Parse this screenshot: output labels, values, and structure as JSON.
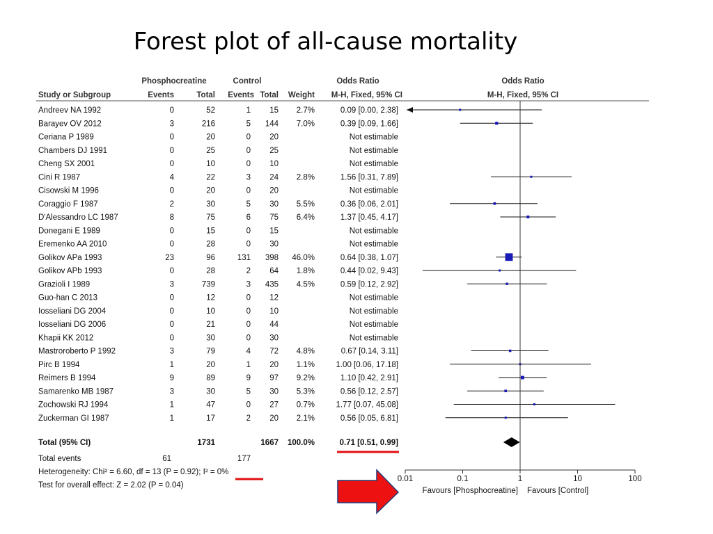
{
  "slide_title": "Forest plot of all-cause mortality",
  "colors": {
    "marker": "#1a1ab8",
    "accent_red": "#e01010",
    "arrow_red": "#ee1111",
    "arrow_outline": "#1e3a78"
  },
  "chart_data": {
    "type": "forest",
    "title": "Forest plot of all-cause mortality",
    "headers": {
      "study": "Study or Subgroup",
      "group1": "Phosphocreatine",
      "group2": "Control",
      "events": "Events",
      "total": "Total",
      "weight": "Weight",
      "or_label": "Odds Ratio",
      "or_method": "M-H, Fixed, 95% CI"
    },
    "studies": [
      {
        "name": "Andreev NA 1992",
        "e1": "0",
        "t1": "52",
        "e2": "1",
        "t2": "15",
        "weight": "2.7%",
        "ci_text": "0.09 [0.00, 2.38]",
        "or": 0.09,
        "lo": 0.004,
        "hi": 2.38,
        "w": 2.7,
        "arrow_left": true
      },
      {
        "name": "Barayev OV 2012",
        "e1": "3",
        "t1": "216",
        "e2": "5",
        "t2": "144",
        "weight": "7.0%",
        "ci_text": "0.39 [0.09, 1.66]",
        "or": 0.39,
        "lo": 0.09,
        "hi": 1.66,
        "w": 7.0
      },
      {
        "name": "Ceriana P 1989",
        "e1": "0",
        "t1": "20",
        "e2": "0",
        "t2": "20",
        "weight": "",
        "ci_text": "Not estimable"
      },
      {
        "name": "Chambers DJ 1991",
        "e1": "0",
        "t1": "25",
        "e2": "0",
        "t2": "25",
        "weight": "",
        "ci_text": "Not estimable"
      },
      {
        "name": "Cheng SX 2001",
        "e1": "0",
        "t1": "10",
        "e2": "0",
        "t2": "10",
        "weight": "",
        "ci_text": "Not estimable"
      },
      {
        "name": "Cini R 1987",
        "e1": "4",
        "t1": "22",
        "e2": "3",
        "t2": "24",
        "weight": "2.8%",
        "ci_text": "1.56 [0.31, 7.89]",
        "or": 1.56,
        "lo": 0.31,
        "hi": 7.89,
        "w": 2.8
      },
      {
        "name": "Cisowski M 1996",
        "e1": "0",
        "t1": "20",
        "e2": "0",
        "t2": "20",
        "weight": "",
        "ci_text": "Not estimable"
      },
      {
        "name": "Coraggio F 1987",
        "e1": "2",
        "t1": "30",
        "e2": "5",
        "t2": "30",
        "weight": "5.5%",
        "ci_text": "0.36 [0.06, 2.01]",
        "or": 0.36,
        "lo": 0.06,
        "hi": 2.01,
        "w": 5.5
      },
      {
        "name": "D'Alessandro LC 1987",
        "e1": "8",
        "t1": "75",
        "e2": "6",
        "t2": "75",
        "weight": "6.4%",
        "ci_text": "1.37 [0.45, 4.17]",
        "or": 1.37,
        "lo": 0.45,
        "hi": 4.17,
        "w": 6.4
      },
      {
        "name": "Donegani E 1989",
        "e1": "0",
        "t1": "15",
        "e2": "0",
        "t2": "15",
        "weight": "",
        "ci_text": "Not estimable"
      },
      {
        "name": "Eremenko AA 2010",
        "e1": "0",
        "t1": "28",
        "e2": "0",
        "t2": "30",
        "weight": "",
        "ci_text": "Not estimable"
      },
      {
        "name": "Golikov APa 1993",
        "e1": "23",
        "t1": "96",
        "e2": "131",
        "t2": "398",
        "weight": "46.0%",
        "ci_text": "0.64 [0.38, 1.07]",
        "or": 0.64,
        "lo": 0.38,
        "hi": 1.07,
        "w": 46.0
      },
      {
        "name": "Golikov APb 1993",
        "e1": "0",
        "t1": "28",
        "e2": "2",
        "t2": "64",
        "weight": "1.8%",
        "ci_text": "0.44 [0.02, 9.43]",
        "or": 0.44,
        "lo": 0.02,
        "hi": 9.43,
        "w": 1.8
      },
      {
        "name": "Grazioli I 1989",
        "e1": "3",
        "t1": "739",
        "e2": "3",
        "t2": "435",
        "weight": "4.5%",
        "ci_text": "0.59 [0.12, 2.92]",
        "or": 0.59,
        "lo": 0.12,
        "hi": 2.92,
        "w": 4.5
      },
      {
        "name": "Guo-han C 2013",
        "e1": "0",
        "t1": "12",
        "e2": "0",
        "t2": "12",
        "weight": "",
        "ci_text": "Not estimable"
      },
      {
        "name": "Iosseliani DG 2004",
        "e1": "0",
        "t1": "10",
        "e2": "0",
        "t2": "10",
        "weight": "",
        "ci_text": "Not estimable"
      },
      {
        "name": "Iosseliani DG 2006",
        "e1": "0",
        "t1": "21",
        "e2": "0",
        "t2": "44",
        "weight": "",
        "ci_text": "Not estimable"
      },
      {
        "name": "Khapii KK 2012",
        "e1": "0",
        "t1": "30",
        "e2": "0",
        "t2": "30",
        "weight": "",
        "ci_text": "Not estimable"
      },
      {
        "name": "Mastroroberto P 1992",
        "e1": "3",
        "t1": "79",
        "e2": "4",
        "t2": "72",
        "weight": "4.8%",
        "ci_text": "0.67 [0.14, 3.11]",
        "or": 0.67,
        "lo": 0.14,
        "hi": 3.11,
        "w": 4.8
      },
      {
        "name": "Pirc B 1994",
        "e1": "1",
        "t1": "20",
        "e2": "1",
        "t2": "20",
        "weight": "1.1%",
        "ci_text": "1.00 [0.06, 17.18]",
        "or": 1.0,
        "lo": 0.06,
        "hi": 17.18,
        "w": 1.1
      },
      {
        "name": "Reimers B 1994",
        "e1": "9",
        "t1": "89",
        "e2": "9",
        "t2": "97",
        "weight": "9.2%",
        "ci_text": "1.10 [0.42, 2.91]",
        "or": 1.1,
        "lo": 0.42,
        "hi": 2.91,
        "w": 9.2
      },
      {
        "name": "Samarenko MB 1987",
        "e1": "3",
        "t1": "30",
        "e2": "5",
        "t2": "30",
        "weight": "5.3%",
        "ci_text": "0.56 [0.12, 2.57]",
        "or": 0.56,
        "lo": 0.12,
        "hi": 2.57,
        "w": 5.3
      },
      {
        "name": "Zochowski RJ 1994",
        "e1": "1",
        "t1": "47",
        "e2": "0",
        "t2": "27",
        "weight": "0.7%",
        "ci_text": "1.77 [0.07, 45.08]",
        "or": 1.77,
        "lo": 0.07,
        "hi": 45.08,
        "w": 0.7
      },
      {
        "name": "Zuckerman GI 1987",
        "e1": "1",
        "t1": "17",
        "e2": "2",
        "t2": "20",
        "weight": "2.1%",
        "ci_text": "0.56 [0.05, 6.81]",
        "or": 0.56,
        "lo": 0.05,
        "hi": 6.81,
        "w": 2.1
      }
    ],
    "total": {
      "label": "Total (95% CI)",
      "t1": "1731",
      "t2": "1667",
      "weight": "100.0%",
      "ci_text": "0.71 [0.51, 0.99]",
      "or": 0.71,
      "lo": 0.51,
      "hi": 0.99
    },
    "total_events": {
      "label": "Total events",
      "e1": "61",
      "e2": "177"
    },
    "heterogeneity": "Heterogeneity: Chi² = 6.60, df = 13 (P = 0.92); I² = 0%",
    "overall_effect": "Test for overall effect: Z = 2.02 (P = 0.04)",
    "axis": {
      "scale": "log",
      "range": [
        0.01,
        100
      ],
      "ticks": [
        {
          "v": 0.01,
          "label": "0.01"
        },
        {
          "v": 0.1,
          "label": "0.1"
        },
        {
          "v": 1,
          "label": "1"
        },
        {
          "v": 10,
          "label": "10"
        },
        {
          "v": 100,
          "label": "100"
        }
      ],
      "favours_left": "Favours [Phosphocreatine]",
      "favours_right": "Favours [Control]"
    }
  }
}
